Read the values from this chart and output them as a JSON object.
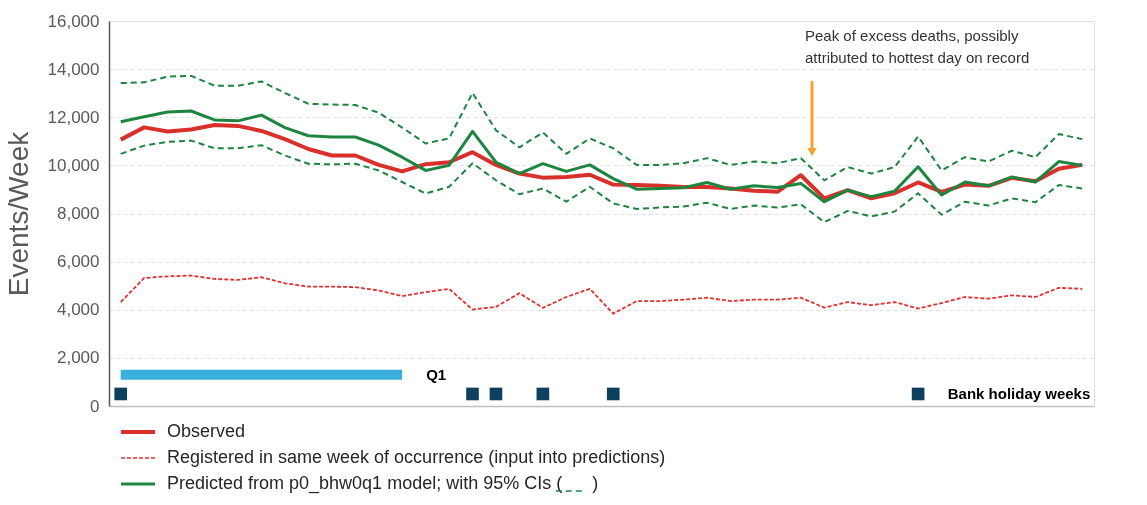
{
  "chart_data": {
    "type": "line",
    "ylabel": "Events/Week",
    "categories": [
      null,
      null,
      null,
      null,
      null,
      null,
      null,
      null,
      null,
      null,
      null,
      null,
      null,
      null,
      null,
      null,
      null,
      null,
      null,
      null,
      null,
      null,
      null,
      null,
      null,
      null,
      null,
      null,
      null,
      null,
      null,
      null,
      null,
      null,
      null,
      null,
      null,
      null,
      null,
      null,
      null,
      null
    ],
    "series": [
      {
        "name": "Observed",
        "color": "#d9302c",
        "values": [
          11070,
          11580,
          11410,
          11490,
          11680,
          11640,
          11430,
          11090,
          10680,
          10410,
          10410,
          10020,
          9750,
          10050,
          10130,
          10550,
          10020,
          9660,
          9490,
          9520,
          9610,
          9200,
          9180,
          9150,
          9100,
          9100,
          9040,
          8950,
          8900,
          9590,
          8630,
          8970,
          8630,
          8840,
          9290,
          8900,
          9200,
          9150,
          9480,
          9340,
          9860,
          10020
        ]
      },
      {
        "name": "Registered in same week of occurrence (input into predictions)",
        "color": "#e03030",
        "line_style": "dashed",
        "values": [
          4320,
          5320,
          5390,
          5420,
          5280,
          5240,
          5350,
          5100,
          4960,
          4960,
          4940,
          4800,
          4570,
          4730,
          4870,
          4010,
          4120,
          4690,
          4080,
          4530,
          4870,
          3840,
          4360,
          4360,
          4420,
          4500,
          4360,
          4420,
          4420,
          4500,
          4090,
          4320,
          4190,
          4320,
          4050,
          4280,
          4530,
          4460,
          4600,
          4530,
          4910,
          4870
        ]
      },
      {
        "name": "Predicted from p0_bhw0q1 model; with 95% CIs (      )",
        "color": "#1e8540",
        "values": [
          11810,
          12020,
          12220,
          12260,
          11890,
          11850,
          12090,
          11570,
          11230,
          11180,
          11180,
          10840,
          10340,
          9790,
          10000,
          11410,
          10130,
          9660,
          10070,
          9750,
          10020,
          9450,
          9010,
          9040,
          9070,
          9290,
          9010,
          9150,
          9080,
          9250,
          8490,
          8970,
          8700,
          8930,
          9940,
          8770,
          9310,
          9150,
          9520,
          9310,
          10160,
          10000
        ]
      },
      {
        "color": "#1e8540",
        "line_style": "dashed",
        "values": [
          13420,
          13450,
          13690,
          13720,
          13310,
          13310,
          13490,
          13010,
          12560,
          12530,
          12510,
          12190,
          11570,
          10910,
          11120,
          13010,
          11460,
          10750,
          11370,
          10480,
          11120,
          10710,
          10020,
          10020,
          10090,
          10300,
          10020,
          10160,
          10090,
          10300,
          9380,
          9930,
          9660,
          9930,
          11200,
          9790,
          10340,
          10160,
          10610,
          10340,
          11300,
          11090
        ]
      },
      {
        "color": "#1e8540",
        "line_style": "dashed",
        "values": [
          10480,
          10820,
          10980,
          11030,
          10710,
          10710,
          10840,
          10410,
          10070,
          10040,
          10070,
          9790,
          9310,
          8830,
          9110,
          10090,
          9380,
          8800,
          9040,
          8490,
          9110,
          8420,
          8190,
          8250,
          8290,
          8450,
          8190,
          8330,
          8250,
          8380,
          7640,
          8110,
          7880,
          8080,
          8840,
          7950,
          8490,
          8330,
          8630,
          8470,
          9180,
          9040
        ]
      },
      {
        "name": "Q1",
        "type": "line",
        "color": "#3aaedc",
        "values": [
          1300,
          1300,
          1300,
          1300,
          1300,
          1300,
          1300,
          1300,
          1300,
          1300,
          1300,
          1300,
          1300,
          null,
          null,
          null,
          null,
          null,
          null,
          null,
          null,
          null,
          null,
          null,
          null,
          null,
          null,
          null,
          null,
          null,
          null,
          null,
          null,
          null,
          null,
          null,
          null,
          null,
          null,
          null,
          null,
          null
        ]
      },
      {
        "name": "Bank holiday weeks",
        "type": "scatter",
        "marker": "square",
        "color": "#0d3f5f",
        "values": [
          500,
          null,
          null,
          null,
          null,
          null,
          null,
          null,
          null,
          null,
          null,
          null,
          null,
          null,
          null,
          500,
          500,
          null,
          500,
          null,
          null,
          500,
          null,
          null,
          null,
          null,
          null,
          null,
          null,
          null,
          null,
          null,
          null,
          null,
          500,
          null,
          null,
          null,
          null,
          null,
          null,
          null
        ]
      }
    ],
    "ylim": [
      0,
      16000
    ],
    "yticks": [
      0,
      {
        "value": 2000,
        "label": "2,000"
      },
      {
        "value": 4000,
        "label": "4,000"
      },
      {
        "value": 6000,
        "label": "6,000"
      },
      {
        "value": 8000,
        "label": "8,000"
      },
      {
        "value": 10000,
        "label": "10,000"
      },
      {
        "value": 12000,
        "label": "12,000"
      },
      {
        "value": 14000,
        "label": "14,000"
      },
      {
        "value": 16000,
        "label": "16,000"
      }
    ],
    "tick_labels": "y",
    "grid": "y",
    "legend": "bottom",
    "annotations": [
      "Peak of excess deaths, possibly attributed to hottest day on record"
    ]
  }
}
